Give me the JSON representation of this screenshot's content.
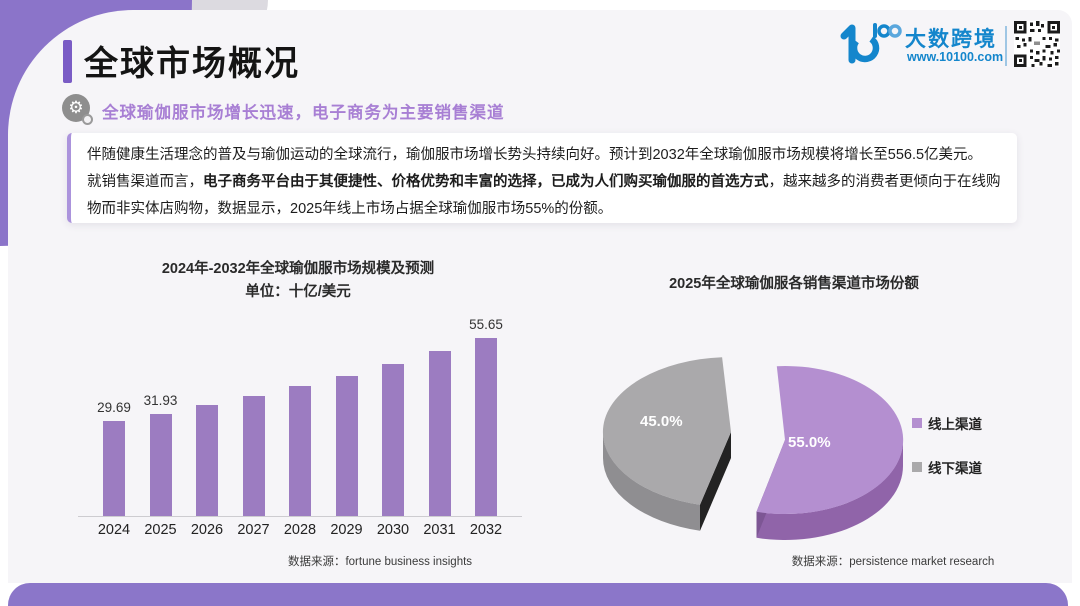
{
  "header": {
    "title": "全球市场概况",
    "subtitle": "全球瑜伽服市场增长迅速，电子商务为主要销售渠道",
    "accent_color": "#7a5cc5",
    "brand": {
      "name": "大数跨境",
      "site": "www.10100.com",
      "logo_text": "10100",
      "brand_color": "#1486cc"
    }
  },
  "intro": {
    "segments": [
      {
        "bold": false,
        "text": "伴随健康生活理念的普及与瑜伽运动的全球流行，瑜伽服市场增长势头持续向好。预计到2032年全球瑜伽服市场规模将增长至556.5亿美元。\n就销售渠道而言，"
      },
      {
        "bold": true,
        "text": "电子商务平台由于其便捷性、价格优势和丰富的选择，已成为人们购买瑜伽服的首选方式"
      },
      {
        "bold": false,
        "text": "，越来越多的消费者更倾向于在线购物而非实体店购物，数据显示，2025年线上市场占据全球瑜伽服市场55%的份额。"
      }
    ]
  },
  "chart_data": [
    {
      "type": "bar",
      "title": "2024年-2032年全球瑜伽服市场规模及预测",
      "subtitle": "单位：十亿/美元",
      "categories": [
        "2024",
        "2025",
        "2026",
        "2027",
        "2028",
        "2029",
        "2030",
        "2031",
        "2032"
      ],
      "values": [
        29.69,
        31.93,
        34.57,
        37.43,
        40.53,
        43.88,
        47.51,
        51.44,
        55.65
      ],
      "labels": [
        "29.69",
        "31.93",
        "",
        "",
        "",
        "",
        "",
        "",
        "55.65"
      ],
      "bar_color": "#9c7cc1",
      "grid": false,
      "ylim": [
        0,
        60
      ],
      "source": "数据来源：fortune business insights"
    },
    {
      "type": "pie",
      "title": "2025年全球瑜伽服各销售渠道市场份额",
      "slices": [
        {
          "label": "线上渠道",
          "value": 55.0,
          "pct_label": "55.0%",
          "color": "#b48fd0"
        },
        {
          "label": "线下渠道",
          "value": 45.0,
          "pct_label": "45.0%",
          "color": "#aaa9ab"
        }
      ],
      "legend_position": "right",
      "style": "3d-exploded",
      "source": "数据来源：persistence market research"
    }
  ]
}
